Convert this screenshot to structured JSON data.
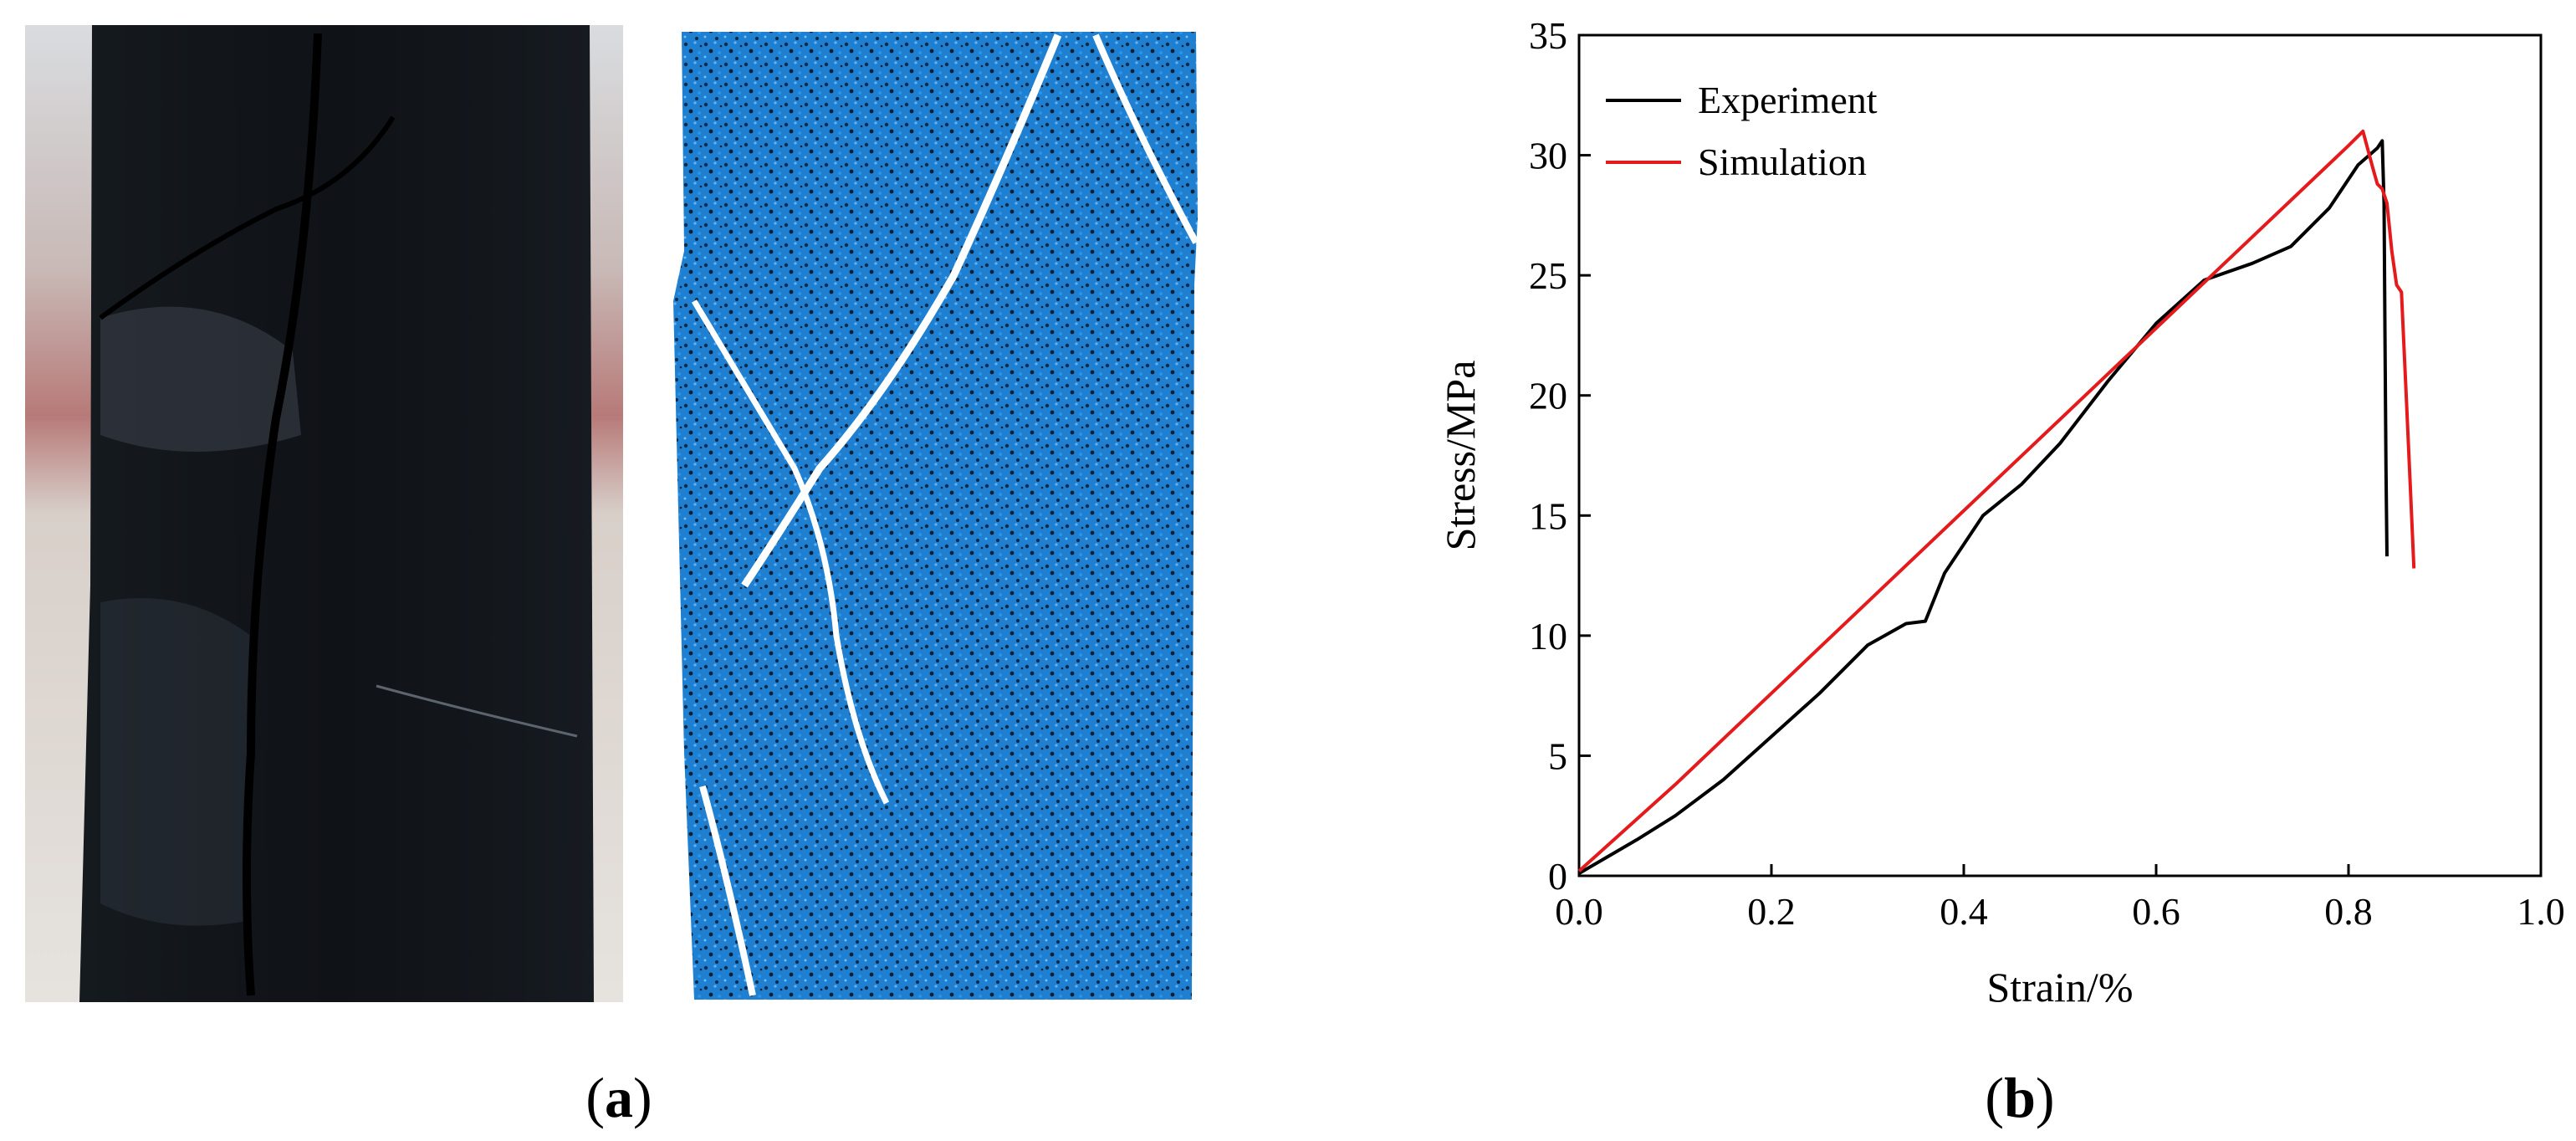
{
  "panel_a": {
    "label": "a"
  },
  "panel_b": {
    "label": "b"
  },
  "colors": {
    "experiment": "#000000",
    "simulation": "#e41a1c",
    "particles": "#1f7fd0"
  },
  "chart_data": {
    "type": "line",
    "xlabel": "Strain/%",
    "ylabel": "Stress/MPa",
    "xlim": [
      0.0,
      1.0
    ],
    "ylim": [
      0,
      35
    ],
    "xticks": [
      "0.0",
      "0.2",
      "0.4",
      "0.6",
      "0.8",
      "1.0"
    ],
    "yticks": [
      "0",
      "5",
      "10",
      "15",
      "20",
      "25",
      "30",
      "35"
    ],
    "legend_position": "top-left",
    "series": [
      {
        "name": "Experiment",
        "color": "#000000",
        "x": [
          0.0,
          0.03,
          0.06,
          0.1,
          0.15,
          0.2,
          0.25,
          0.3,
          0.34,
          0.36,
          0.38,
          0.42,
          0.46,
          0.5,
          0.55,
          0.6,
          0.65,
          0.7,
          0.74,
          0.78,
          0.81,
          0.83,
          0.835,
          0.837,
          0.838,
          0.839,
          0.84
        ],
        "y": [
          0.1,
          0.8,
          1.5,
          2.5,
          4.0,
          5.8,
          7.6,
          9.6,
          10.5,
          10.6,
          12.6,
          15.0,
          16.3,
          18.0,
          20.6,
          23.0,
          24.8,
          25.5,
          26.2,
          27.8,
          29.6,
          30.3,
          30.6,
          28.0,
          22.0,
          17.0,
          13.3
        ]
      },
      {
        "name": "Simulation",
        "color": "#e41a1c",
        "x": [
          0.0,
          0.1,
          0.2,
          0.3,
          0.4,
          0.5,
          0.6,
          0.7,
          0.8,
          0.815,
          0.825,
          0.83,
          0.835,
          0.84,
          0.845,
          0.85,
          0.855,
          0.86,
          0.865,
          0.868
        ],
        "y": [
          0.2,
          3.8,
          7.6,
          11.4,
          15.2,
          19.0,
          22.8,
          26.6,
          30.4,
          31.0,
          29.5,
          28.8,
          28.6,
          28.0,
          26.0,
          24.6,
          24.3,
          20.0,
          15.5,
          12.8
        ]
      }
    ]
  }
}
